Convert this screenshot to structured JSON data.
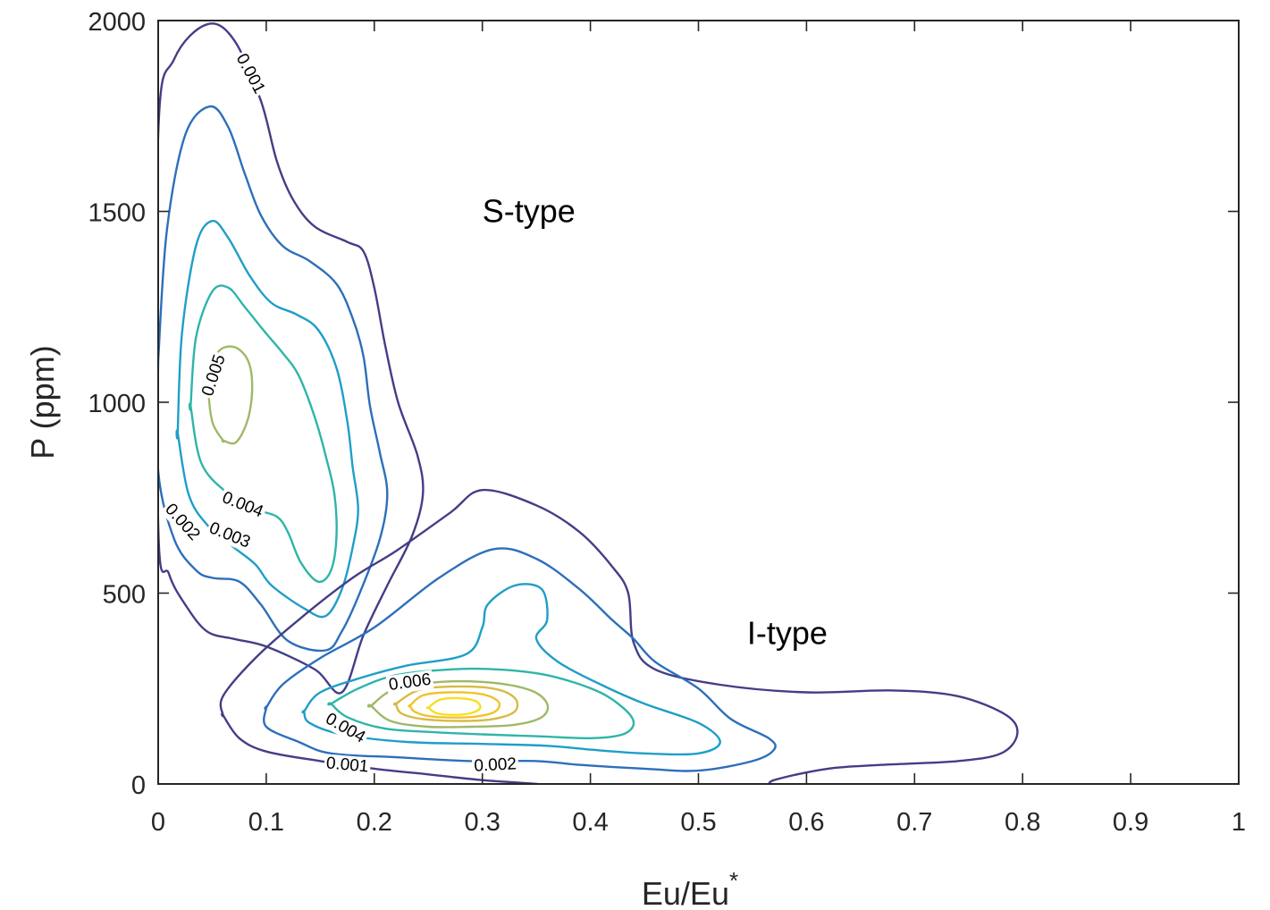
{
  "chart_data": {
    "type": "contour",
    "xlabel": "Eu/Eu",
    "xlabel_superscript": "*",
    "ylabel": "P (ppm)",
    "xlim": [
      0,
      1
    ],
    "ylim": [
      0,
      2000
    ],
    "xticks": [
      "0",
      "0.1",
      "0.2",
      "0.3",
      "0.4",
      "0.5",
      "0.6",
      "0.7",
      "0.8",
      "0.9",
      "1"
    ],
    "yticks": [
      "0",
      "500",
      "1000",
      "1500",
      "2000"
    ],
    "grid": false,
    "box": true,
    "annotations": [
      {
        "text": "S-type",
        "x": 0.3,
        "y": 1500
      },
      {
        "text": "I-type",
        "x": 0.545,
        "y": 395
      }
    ],
    "level_colors": {
      "0.001": "#433e85",
      "0.002": "#2c6fbb",
      "0.003": "#1f9ec8",
      "0.004": "#2eb5a8",
      "0.005": "#9fb868",
      "0.006": "#d8ba45",
      "0.007": "#f2c22c",
      "0.008": "#f5e01e"
    },
    "contour_labels": [
      {
        "text": "0.001",
        "x": 0.085,
        "y": 1860,
        "angle": 62
      },
      {
        "text": "0.005",
        "x": 0.052,
        "y": 1070,
        "angle": -72
      },
      {
        "text": "0.004",
        "x": 0.078,
        "y": 730,
        "angle": 22
      },
      {
        "text": "0.003",
        "x": 0.066,
        "y": 650,
        "angle": 22
      },
      {
        "text": "0.002",
        "x": 0.022,
        "y": 685,
        "angle": 48
      },
      {
        "text": "0.006",
        "x": 0.233,
        "y": 265,
        "angle": -8
      },
      {
        "text": "0.004",
        "x": 0.173,
        "y": 145,
        "angle": 30
      },
      {
        "text": "0.001",
        "x": 0.175,
        "y": 48,
        "angle": 5
      },
      {
        "text": "0.002",
        "x": 0.312,
        "y": 48,
        "angle": -3
      }
    ],
    "series": [
      {
        "group": "S-type",
        "level": 0.001,
        "points": [
          [
            0.0,
            1700
          ],
          [
            0.015,
            1900
          ],
          [
            0.045,
            1990
          ],
          [
            0.07,
            1950
          ],
          [
            0.095,
            1790
          ],
          [
            0.11,
            1630
          ],
          [
            0.125,
            1530
          ],
          [
            0.145,
            1460
          ],
          [
            0.175,
            1420
          ],
          [
            0.19,
            1395
          ],
          [
            0.2,
            1300
          ],
          [
            0.21,
            1150
          ],
          [
            0.222,
            1000
          ],
          [
            0.24,
            860
          ],
          [
            0.245,
            760
          ],
          [
            0.235,
            650
          ],
          [
            0.212,
            520
          ],
          [
            0.19,
            390
          ],
          [
            0.17,
            240
          ],
          [
            0.145,
            300
          ],
          [
            0.1,
            360
          ],
          [
            0.07,
            380
          ],
          [
            0.045,
            400
          ],
          [
            0.025,
            470
          ],
          [
            0.01,
            550
          ],
          [
            0.0,
            680
          ]
        ]
      },
      {
        "group": "S-type",
        "level": 0.002,
        "points": [
          [
            0.0,
            1110
          ],
          [
            0.008,
            1450
          ],
          [
            0.025,
            1700
          ],
          [
            0.048,
            1775
          ],
          [
            0.065,
            1720
          ],
          [
            0.08,
            1600
          ],
          [
            0.095,
            1490
          ],
          [
            0.115,
            1410
          ],
          [
            0.14,
            1370
          ],
          [
            0.165,
            1310
          ],
          [
            0.18,
            1220
          ],
          [
            0.19,
            1120
          ],
          [
            0.196,
            990
          ],
          [
            0.205,
            870
          ],
          [
            0.212,
            760
          ],
          [
            0.205,
            640
          ],
          [
            0.185,
            490
          ],
          [
            0.17,
            400
          ],
          [
            0.155,
            350
          ],
          [
            0.12,
            375
          ],
          [
            0.095,
            470
          ],
          [
            0.075,
            530
          ],
          [
            0.05,
            540
          ],
          [
            0.035,
            560
          ],
          [
            0.015,
            640
          ],
          [
            0.0,
            820
          ],
          [
            0.0,
            1110
          ]
        ]
      },
      {
        "group": "S-type",
        "level": 0.003,
        "points": [
          [
            0.018,
            920
          ],
          [
            0.022,
            1180
          ],
          [
            0.035,
            1410
          ],
          [
            0.05,
            1475
          ],
          [
            0.065,
            1430
          ],
          [
            0.085,
            1330
          ],
          [
            0.105,
            1260
          ],
          [
            0.128,
            1230
          ],
          [
            0.148,
            1190
          ],
          [
            0.165,
            1090
          ],
          [
            0.175,
            950
          ],
          [
            0.18,
            830
          ],
          [
            0.185,
            720
          ],
          [
            0.18,
            620
          ],
          [
            0.17,
            510
          ],
          [
            0.155,
            440
          ],
          [
            0.135,
            460
          ],
          [
            0.105,
            520
          ],
          [
            0.09,
            575
          ],
          [
            0.07,
            620
          ],
          [
            0.045,
            680
          ],
          [
            0.028,
            760
          ],
          [
            0.018,
            920
          ]
        ]
      },
      {
        "group": "S-type",
        "level": 0.004,
        "points": [
          [
            0.03,
            990
          ],
          [
            0.035,
            1170
          ],
          [
            0.05,
            1290
          ],
          [
            0.065,
            1300
          ],
          [
            0.08,
            1250
          ],
          [
            0.1,
            1180
          ],
          [
            0.115,
            1130
          ],
          [
            0.13,
            1070
          ],
          [
            0.145,
            960
          ],
          [
            0.155,
            860
          ],
          [
            0.163,
            760
          ],
          [
            0.165,
            650
          ],
          [
            0.16,
            560
          ],
          [
            0.148,
            530
          ],
          [
            0.132,
            580
          ],
          [
            0.12,
            660
          ],
          [
            0.11,
            700
          ],
          [
            0.09,
            720
          ],
          [
            0.065,
            760
          ],
          [
            0.04,
            840
          ],
          [
            0.03,
            990
          ]
        ]
      },
      {
        "group": "S-type",
        "level": 0.005,
        "points": [
          [
            0.06,
            900
          ],
          [
            0.05,
            950
          ],
          [
            0.047,
            1050
          ],
          [
            0.055,
            1130
          ],
          [
            0.07,
            1145
          ],
          [
            0.083,
            1110
          ],
          [
            0.087,
            1040
          ],
          [
            0.083,
            955
          ],
          [
            0.072,
            895
          ],
          [
            0.06,
            900
          ]
        ]
      },
      {
        "group": "I-type",
        "level": 0.001,
        "points": [
          [
            0.06,
            180
          ],
          [
            0.06,
            230
          ],
          [
            0.09,
            330
          ],
          [
            0.13,
            430
          ],
          [
            0.18,
            540
          ],
          [
            0.22,
            610
          ],
          [
            0.27,
            710
          ],
          [
            0.3,
            770
          ],
          [
            0.35,
            730
          ],
          [
            0.39,
            660
          ],
          [
            0.42,
            570
          ],
          [
            0.435,
            500
          ],
          [
            0.44,
            370
          ],
          [
            0.46,
            300
          ],
          [
            0.52,
            260
          ],
          [
            0.6,
            240
          ],
          [
            0.68,
            245
          ],
          [
            0.74,
            230
          ],
          [
            0.785,
            180
          ],
          [
            0.795,
            130
          ],
          [
            0.78,
            80
          ],
          [
            0.74,
            60
          ],
          [
            0.67,
            50
          ],
          [
            0.62,
            40
          ],
          [
            0.57,
            10
          ],
          [
            0.55,
            -20
          ],
          [
            0.42,
            -20
          ],
          [
            0.35,
            0
          ],
          [
            0.3,
            10
          ],
          [
            0.25,
            25
          ],
          [
            0.2,
            40
          ],
          [
            0.15,
            60
          ],
          [
            0.1,
            85
          ],
          [
            0.075,
            120
          ],
          [
            0.06,
            180
          ]
        ]
      },
      {
        "group": "I-type",
        "level": 0.002,
        "points": [
          [
            0.1,
            200
          ],
          [
            0.115,
            260
          ],
          [
            0.15,
            330
          ],
          [
            0.2,
            410
          ],
          [
            0.26,
            540
          ],
          [
            0.31,
            615
          ],
          [
            0.35,
            590
          ],
          [
            0.39,
            510
          ],
          [
            0.42,
            430
          ],
          [
            0.44,
            380
          ],
          [
            0.46,
            320
          ],
          [
            0.5,
            250
          ],
          [
            0.53,
            170
          ],
          [
            0.565,
            120
          ],
          [
            0.57,
            90
          ],
          [
            0.55,
            60
          ],
          [
            0.5,
            35
          ],
          [
            0.45,
            40
          ],
          [
            0.39,
            50
          ],
          [
            0.35,
            60
          ],
          [
            0.29,
            60
          ],
          [
            0.22,
            70
          ],
          [
            0.16,
            80
          ],
          [
            0.13,
            110
          ],
          [
            0.1,
            150
          ],
          [
            0.1,
            200
          ]
        ]
      },
      {
        "group": "I-type",
        "level": 0.003,
        "points": [
          [
            0.135,
            190
          ],
          [
            0.15,
            240
          ],
          [
            0.19,
            280
          ],
          [
            0.23,
            310
          ],
          [
            0.285,
            340
          ],
          [
            0.3,
            410
          ],
          [
            0.305,
            470
          ],
          [
            0.33,
            520
          ],
          [
            0.355,
            510
          ],
          [
            0.36,
            430
          ],
          [
            0.35,
            380
          ],
          [
            0.37,
            320
          ],
          [
            0.41,
            260
          ],
          [
            0.45,
            210
          ],
          [
            0.5,
            160
          ],
          [
            0.52,
            110
          ],
          [
            0.5,
            80
          ],
          [
            0.45,
            80
          ],
          [
            0.4,
            90
          ],
          [
            0.36,
            100
          ],
          [
            0.3,
            105
          ],
          [
            0.23,
            110
          ],
          [
            0.17,
            130
          ],
          [
            0.14,
            160
          ],
          [
            0.135,
            190
          ]
        ]
      },
      {
        "group": "I-type",
        "level": 0.004,
        "points": [
          [
            0.16,
            210
          ],
          [
            0.185,
            250
          ],
          [
            0.22,
            285
          ],
          [
            0.27,
            300
          ],
          [
            0.315,
            300
          ],
          [
            0.36,
            285
          ],
          [
            0.405,
            245
          ],
          [
            0.43,
            200
          ],
          [
            0.44,
            160
          ],
          [
            0.43,
            130
          ],
          [
            0.4,
            120
          ],
          [
            0.35,
            125
          ],
          [
            0.3,
            130
          ],
          [
            0.26,
            135
          ],
          [
            0.21,
            145
          ],
          [
            0.175,
            175
          ],
          [
            0.16,
            210
          ]
        ]
      },
      {
        "group": "I-type",
        "level": 0.005,
        "points": [
          [
            0.197,
            205
          ],
          [
            0.22,
            250
          ],
          [
            0.265,
            268
          ],
          [
            0.31,
            265
          ],
          [
            0.345,
            245
          ],
          [
            0.36,
            210
          ],
          [
            0.355,
            175
          ],
          [
            0.33,
            155
          ],
          [
            0.29,
            150
          ],
          [
            0.25,
            150
          ],
          [
            0.215,
            165
          ],
          [
            0.197,
            205
          ]
        ]
      },
      {
        "group": "I-type",
        "level": 0.006,
        "points": [
          [
            0.22,
            210
          ],
          [
            0.24,
            245
          ],
          [
            0.27,
            255
          ],
          [
            0.31,
            250
          ],
          [
            0.33,
            225
          ],
          [
            0.33,
            190
          ],
          [
            0.31,
            170
          ],
          [
            0.28,
            165
          ],
          [
            0.245,
            170
          ],
          [
            0.225,
            185
          ],
          [
            0.22,
            210
          ]
        ]
      },
      {
        "group": "I-type",
        "level": 0.007,
        "points": [
          [
            0.233,
            205
          ],
          [
            0.245,
            232
          ],
          [
            0.27,
            240
          ],
          [
            0.3,
            235
          ],
          [
            0.315,
            215
          ],
          [
            0.312,
            190
          ],
          [
            0.295,
            177
          ],
          [
            0.27,
            174
          ],
          [
            0.25,
            178
          ],
          [
            0.237,
            190
          ],
          [
            0.233,
            205
          ]
        ]
      },
      {
        "group": "I-type",
        "level": 0.008,
        "points": [
          [
            0.25,
            200
          ],
          [
            0.26,
            220
          ],
          [
            0.275,
            225
          ],
          [
            0.293,
            218
          ],
          [
            0.298,
            200
          ],
          [
            0.29,
            186
          ],
          [
            0.275,
            181
          ],
          [
            0.258,
            185
          ],
          [
            0.25,
            200
          ]
        ]
      }
    ]
  }
}
